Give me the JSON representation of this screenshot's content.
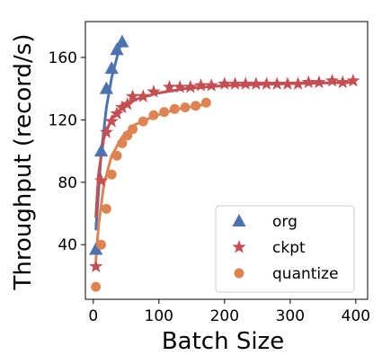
{
  "chart_data": {
    "type": "scatter",
    "xlabel": "Batch Size",
    "ylabel": "Throughput (record/s)",
    "xlim": [
      -12,
      418
    ],
    "ylim": [
      5,
      183
    ],
    "xticks": [
      0,
      100,
      200,
      300,
      400
    ],
    "yticks": [
      40,
      80,
      120,
      160
    ],
    "grid": false,
    "legend_position": "lower-right",
    "series": [
      {
        "name": "org",
        "marker": "triangle",
        "color": "#4c72b0",
        "x": [
          4,
          12,
          20,
          28,
          36,
          44
        ],
        "y": [
          37,
          100,
          140,
          153,
          165,
          170
        ],
        "fit": {
          "x": [
            4,
            12,
            20,
            28,
            36,
            44
          ],
          "y": [
            50,
            98,
            128,
            147,
            160,
            172
          ]
        }
      },
      {
        "name": "ckpt",
        "marker": "star",
        "color": "#c44e52",
        "x": [
          4,
          12,
          20,
          28,
          36,
          44,
          52,
          60,
          76,
          92,
          116,
          132,
          148,
          164,
          180,
          200,
          216,
          232,
          248,
          264,
          280,
          296,
          312,
          328,
          344,
          364,
          380,
          396
        ],
        "y": [
          26,
          81,
          112,
          119,
          124,
          128,
          130,
          135,
          135,
          138,
          141,
          141,
          141,
          142,
          142,
          143,
          143,
          143,
          143,
          143,
          143,
          143,
          143,
          144,
          144,
          145,
          144,
          145
        ],
        "fit": {
          "x": [
            4,
            8,
            16,
            28,
            44,
            64,
            96,
            140,
            200,
            280,
            396
          ],
          "y": [
            58,
            85,
            108,
            121,
            128,
            133,
            137,
            140,
            142,
            143,
            144
          ]
        }
      },
      {
        "name": "quantize",
        "marker": "circle",
        "color": "#dd8452",
        "x": [
          4,
          12,
          20,
          28,
          36,
          44,
          52,
          60,
          76,
          92,
          108,
          124,
          140,
          156,
          172
        ],
        "y": [
          13,
          40,
          63,
          85,
          97,
          105,
          110,
          114,
          119,
          123,
          125,
          127,
          128,
          129,
          131
        ],
        "fit": {
          "x": [
            4,
            8,
            16,
            28,
            44,
            64,
            96,
            130,
            172
          ],
          "y": [
            30,
            52,
            78,
            97,
            109,
            117,
            123,
            127,
            130
          ]
        }
      }
    ]
  }
}
